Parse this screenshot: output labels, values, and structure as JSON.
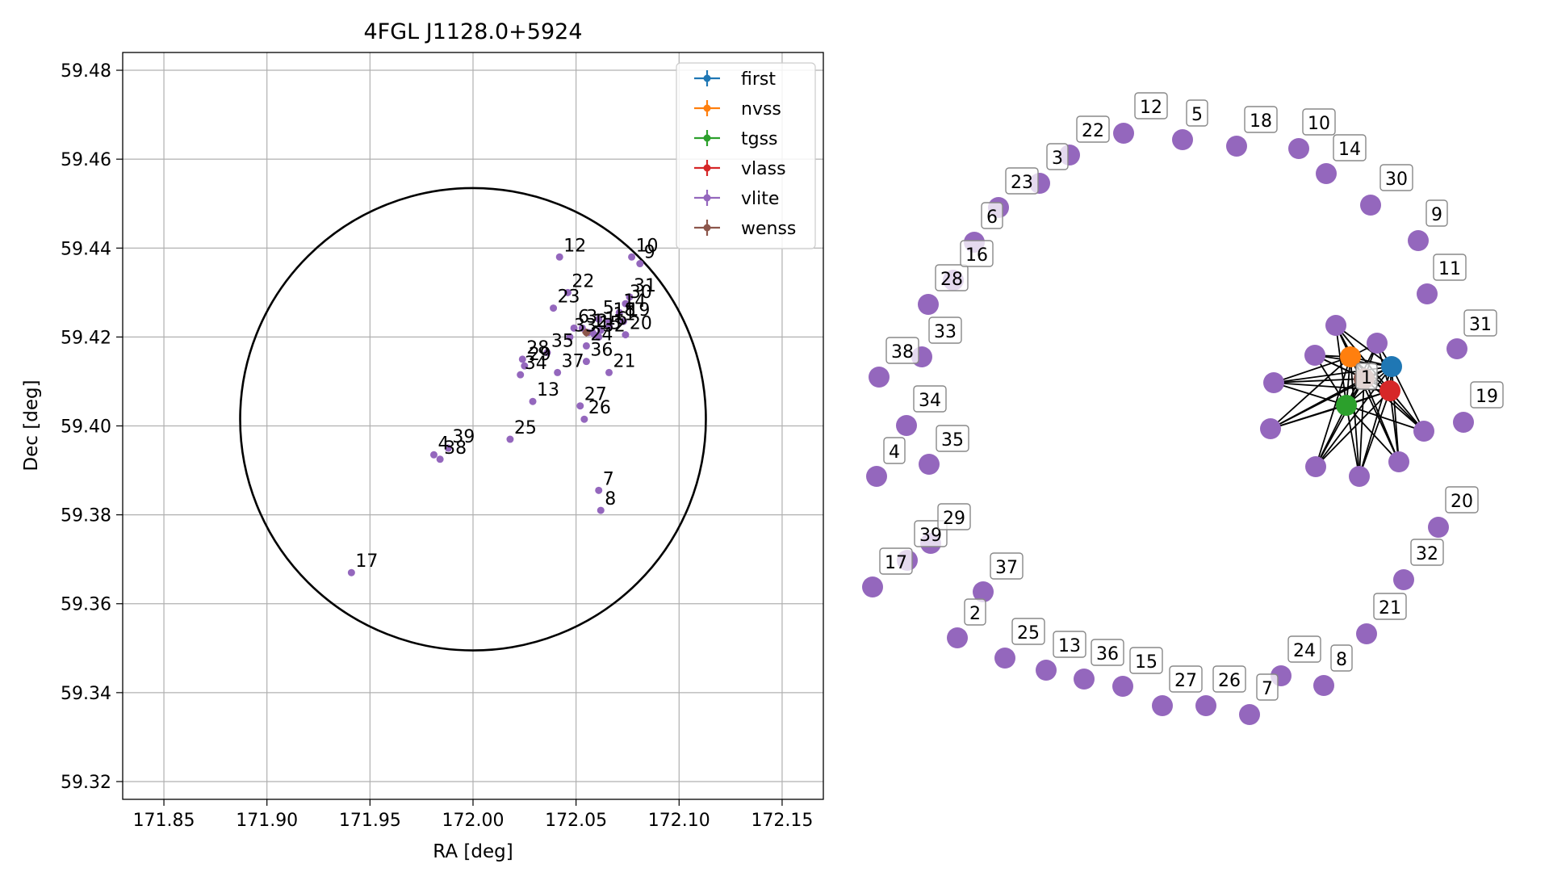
{
  "chart_data": [
    {
      "type": "scatter",
      "title": "4FGL J1128.0+5924",
      "xlabel": "RA [deg]",
      "ylabel": "Dec [deg]",
      "xlim": [
        171.83,
        172.17
      ],
      "ylim": [
        59.316,
        59.484
      ],
      "xticks": [
        "171.85",
        "171.90",
        "171.95",
        "172.00",
        "172.05",
        "172.10",
        "172.15"
      ],
      "yticks": [
        "59.32",
        "59.34",
        "59.36",
        "59.38",
        "59.40",
        "59.42",
        "59.44",
        "59.46",
        "59.48"
      ],
      "grid": true,
      "legend_position": "top-right",
      "legend": [
        {
          "name": "first",
          "color": "#1f77b4"
        },
        {
          "name": "nvss",
          "color": "#ff7f0e"
        },
        {
          "name": "tgss",
          "color": "#2ca02c"
        },
        {
          "name": "vlass",
          "color": "#d62728"
        },
        {
          "name": "vlite",
          "color": "#9467bd"
        },
        {
          "name": "wenss",
          "color": "#8c564b"
        }
      ],
      "circle": {
        "center_ra": 172.0,
        "center_dec": 59.4015,
        "radius_ra": 0.113,
        "radius_dec": 0.052,
        "color": "#000000"
      },
      "series": [
        {
          "name": "vlite",
          "color": "#9467bd",
          "points": [
            {
              "label": "1",
              "ra": 172.056,
              "dec": 59.421
            },
            {
              "label": "2",
              "ra": 172.058,
              "dec": 59.421
            },
            {
              "label": "3",
              "ra": 172.053,
              "dec": 59.422
            },
            {
              "label": "4",
              "ra": 171.981,
              "dec": 59.3935
            },
            {
              "label": "5",
              "ra": 172.061,
              "dec": 59.424
            },
            {
              "label": "6",
              "ra": 172.049,
              "dec": 59.422
            },
            {
              "label": "7",
              "ra": 172.061,
              "dec": 59.3855
            },
            {
              "label": "8",
              "ra": 172.062,
              "dec": 59.381
            },
            {
              "label": "9",
              "ra": 172.081,
              "dec": 59.4365
            },
            {
              "label": "10",
              "ra": 172.077,
              "dec": 59.438
            },
            {
              "label": "11",
              "ra": 172.066,
              "dec": 59.4225
            },
            {
              "label": "12",
              "ra": 172.042,
              "dec": 59.438
            },
            {
              "label": "13",
              "ra": 172.029,
              "dec": 59.4055
            },
            {
              "label": "14",
              "ra": 172.071,
              "dec": 59.4255
            },
            {
              "label": "15",
              "ra": 172.059,
              "dec": 59.4205
            },
            {
              "label": "16",
              "ra": 172.062,
              "dec": 59.4215
            },
            {
              "label": "17",
              "ra": 171.941,
              "dec": 59.367
            },
            {
              "label": "18",
              "ra": 172.066,
              "dec": 59.4235
            },
            {
              "label": "19",
              "ra": 172.073,
              "dec": 59.4235
            },
            {
              "label": "20",
              "ra": 172.074,
              "dec": 59.4205
            },
            {
              "label": "21",
              "ra": 172.066,
              "dec": 59.412
            },
            {
              "label": "22",
              "ra": 172.046,
              "dec": 59.43
            },
            {
              "label": "23",
              "ra": 172.039,
              "dec": 59.4265
            },
            {
              "label": "24",
              "ra": 172.055,
              "dec": 59.418
            },
            {
              "label": "25",
              "ra": 172.018,
              "dec": 59.397
            },
            {
              "label": "26",
              "ra": 172.054,
              "dec": 59.4015
            },
            {
              "label": "27",
              "ra": 172.052,
              "dec": 59.4045
            },
            {
              "label": "28",
              "ra": 172.024,
              "dec": 59.415
            },
            {
              "label": "29",
              "ra": 172.025,
              "dec": 59.4135
            },
            {
              "label": "30",
              "ra": 172.074,
              "dec": 59.4275
            },
            {
              "label": "31",
              "ra": 172.076,
              "dec": 59.429
            },
            {
              "label": "32",
              "ra": 172.061,
              "dec": 59.42
            },
            {
              "label": "33",
              "ra": 172.047,
              "dec": 59.42
            },
            {
              "label": "34",
              "ra": 172.023,
              "dec": 59.4115
            },
            {
              "label": "35",
              "ra": 172.036,
              "dec": 59.4165
            },
            {
              "label": "36",
              "ra": 172.055,
              "dec": 59.4145
            },
            {
              "label": "37",
              "ra": 172.041,
              "dec": 59.412
            },
            {
              "label": "38",
              "ra": 171.984,
              "dec": 59.3925
            },
            {
              "label": "39",
              "ra": 171.988,
              "dec": 59.395
            }
          ]
        },
        {
          "name": "wenss",
          "color": "#8c564b",
          "points": [
            {
              "label": "",
              "ra": 172.055,
              "dec": 59.421
            }
          ]
        }
      ]
    },
    {
      "type": "network",
      "hubs": [
        {
          "name": "first",
          "color": "#1f77b4"
        },
        {
          "name": "nvss",
          "color": "#ff7f0e"
        },
        {
          "name": "tgss",
          "color": "#2ca02c"
        },
        {
          "name": "vlass",
          "color": "#d62728"
        },
        {
          "name": "wenss",
          "color": "#8c564b"
        }
      ],
      "hub_label": "1",
      "ring_labels": [
        "12",
        "5",
        "18",
        "10",
        "14",
        "30",
        "9",
        "11",
        "31",
        "19",
        "20",
        "32",
        "21",
        "8",
        "24",
        "7",
        "26",
        "27",
        "15",
        "36",
        "13",
        "25",
        "2",
        "37",
        "17",
        "39",
        "29",
        "4",
        "35",
        "34",
        "38",
        "33",
        "28",
        "16",
        "6",
        "23",
        "3",
        "22"
      ],
      "node_color": "#9467bd"
    }
  ]
}
